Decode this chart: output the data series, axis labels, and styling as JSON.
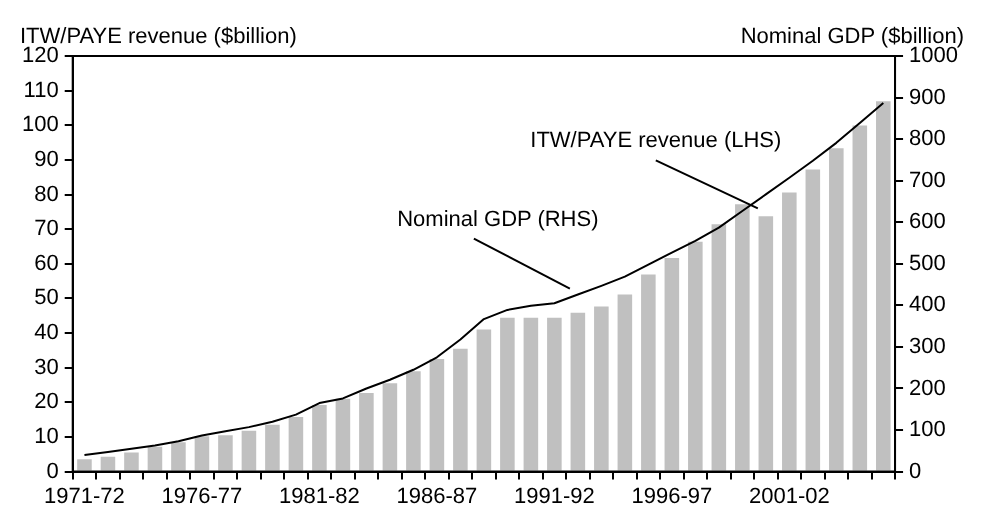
{
  "chart_data": {
    "type": "bar",
    "ylabel": "ITW/PAYE revenue ($billion)",
    "y2label": "Nominal GDP ($billion)",
    "categories": [
      "1971-72",
      null,
      null,
      null,
      null,
      "1976-77",
      null,
      null,
      null,
      null,
      "1981-82",
      null,
      null,
      null,
      null,
      "1986-87",
      null,
      null,
      null,
      null,
      "1991-92",
      null,
      null,
      null,
      null,
      "1996-97",
      null,
      null,
      null,
      null,
      "2001-02",
      null,
      null,
      null,
      null
    ],
    "series": [
      {
        "name": "ITW/PAYE revenue (LHS)",
        "color": "#c0c0c0",
        "values": [
          3.6,
          4.3,
          5.5,
          7.2,
          8.5,
          10.2,
          10.5,
          11.8,
          13.5,
          15.8,
          19.2,
          21,
          22.7,
          25.5,
          29,
          32.5,
          35.5,
          41,
          44.4,
          44.4,
          44.4,
          45.9,
          47.7,
          51.1,
          56.9,
          61.7,
          66.4,
          71.4,
          77.2,
          73.7,
          80.6,
          87.2,
          93.4,
          99.9,
          106.9
        ]
      },
      {
        "name": "Nominal GDP (RHS)",
        "type": "line",
        "axis": "y2",
        "color": "#000000",
        "values": [
          40,
          47,
          55,
          63,
          73,
          87,
          97,
          107,
          120,
          137,
          165,
          176,
          200,
          221,
          245,
          275,
          318,
          367,
          389,
          399,
          405,
          426,
          447,
          469,
          498,
          527,
          555,
          587,
          627,
          667,
          707,
          748,
          791,
          839,
          887
        ]
      }
    ],
    "ylim": [
      0,
      120
    ],
    "yticks": [
      0,
      10,
      20,
      30,
      40,
      50,
      60,
      70,
      80,
      90,
      100,
      110,
      120
    ],
    "y2lim": [
      0,
      1000
    ],
    "y2ticks": [
      0,
      100,
      200,
      300,
      400,
      500,
      600,
      700,
      800,
      900,
      1000
    ],
    "marker": "none",
    "line_style": "solid",
    "grid": false,
    "legend": false
  }
}
